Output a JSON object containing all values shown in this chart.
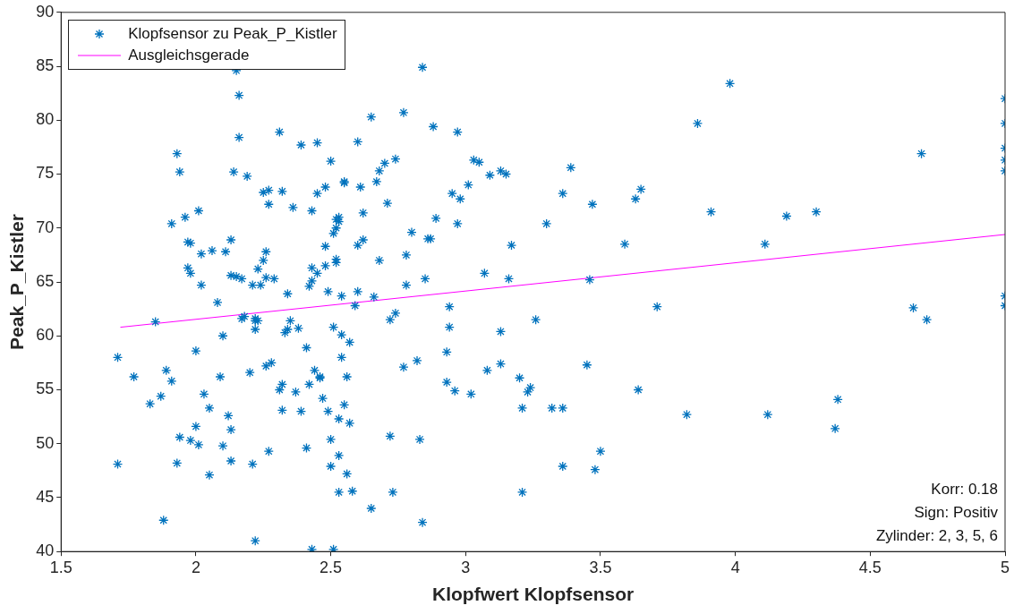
{
  "chart_data": {
    "type": "scatter",
    "xlabel": "Klopfwert Klopfsensor",
    "ylabel": "Peak_P_Kistler",
    "xlim": [
      1.5,
      5
    ],
    "xticks": [
      1.5,
      2,
      2.5,
      3,
      3.5,
      4,
      4.5,
      5
    ],
    "ylim": [
      40,
      90
    ],
    "yticks": [
      40,
      45,
      50,
      55,
      60,
      65,
      70,
      75,
      80,
      85,
      90
    ],
    "grid": false,
    "legend": "top left",
    "annotations": [
      "Korr: 0.18",
      "Sign: Positiv",
      "Zylinder: 2, 3, 5, 6"
    ],
    "series": [
      {
        "name": "Klopfsensor zu Peak_P_Kistler",
        "marker": "cross",
        "color": "#0072bd",
        "x": [
          1.71,
          1.71,
          1.77,
          1.83,
          1.85,
          1.87,
          1.88,
          1.89,
          1.91,
          1.91,
          1.93,
          1.93,
          1.94,
          1.94,
          1.96,
          1.97,
          1.97,
          1.98,
          1.98,
          1.98,
          2.0,
          2.0,
          2.01,
          2.01,
          2.02,
          2.02,
          2.03,
          2.05,
          2.05,
          2.06,
          2.08,
          2.09,
          2.1,
          2.1,
          2.11,
          2.12,
          2.13,
          2.13,
          2.13,
          2.13,
          2.14,
          2.15,
          2.15,
          2.16,
          2.16,
          2.17,
          2.17,
          2.18,
          2.19,
          2.2,
          2.21,
          2.21,
          2.22,
          2.22,
          2.22,
          2.22,
          2.23,
          2.23,
          2.24,
          2.25,
          2.25,
          2.26,
          2.26,
          2.26,
          2.27,
          2.27,
          2.27,
          2.28,
          2.29,
          2.31,
          2.31,
          2.32,
          2.32,
          2.32,
          2.33,
          2.34,
          2.34,
          2.35,
          2.36,
          2.37,
          2.38,
          2.39,
          2.39,
          2.41,
          2.41,
          2.42,
          2.42,
          2.43,
          2.43,
          2.43,
          2.43,
          2.44,
          2.45,
          2.45,
          2.45,
          2.46,
          2.46,
          2.47,
          2.48,
          2.48,
          2.48,
          2.49,
          2.49,
          2.5,
          2.5,
          2.5,
          2.51,
          2.51,
          2.51,
          2.52,
          2.52,
          2.52,
          2.52,
          2.53,
          2.53,
          2.53,
          2.53,
          2.53,
          2.54,
          2.54,
          2.54,
          2.55,
          2.55,
          2.55,
          2.56,
          2.56,
          2.57,
          2.57,
          2.58,
          2.59,
          2.6,
          2.6,
          2.6,
          2.61,
          2.62,
          2.62,
          2.65,
          2.65,
          2.66,
          2.67,
          2.68,
          2.68,
          2.7,
          2.71,
          2.72,
          2.72,
          2.73,
          2.74,
          2.74,
          2.77,
          2.77,
          2.78,
          2.78,
          2.8,
          2.82,
          2.83,
          2.84,
          2.84,
          2.85,
          2.86,
          2.87,
          2.88,
          2.89,
          2.93,
          2.93,
          2.94,
          2.94,
          2.95,
          2.96,
          2.97,
          2.97,
          2.98,
          3.01,
          3.02,
          3.03,
          3.05,
          3.07,
          3.08,
          3.09,
          3.13,
          3.13,
          3.13,
          3.15,
          3.16,
          3.17,
          3.2,
          3.21,
          3.21,
          3.23,
          3.24,
          3.26,
          3.3,
          3.32,
          3.36,
          3.36,
          3.36,
          3.39,
          3.45,
          3.46,
          3.47,
          3.48,
          3.5,
          3.59,
          3.63,
          3.64,
          3.65,
          3.71,
          3.82,
          3.86,
          3.91,
          3.98,
          4.11,
          4.12,
          4.19,
          4.3,
          4.37,
          4.38,
          4.66,
          4.69,
          4.71,
          5,
          5,
          5,
          5,
          5,
          5,
          5
        ],
        "values": [
          58.0,
          48.1,
          56.2,
          53.7,
          61.3,
          54.4,
          42.9,
          56.8,
          70.4,
          55.8,
          76.9,
          48.2,
          50.6,
          75.2,
          71.0,
          68.7,
          66.3,
          68.6,
          65.8,
          50.3,
          58.6,
          51.6,
          49.9,
          71.6,
          64.7,
          67.6,
          54.6,
          53.3,
          47.1,
          67.9,
          63.1,
          56.2,
          60.0,
          49.8,
          67.8,
          52.6,
          65.6,
          51.3,
          48.4,
          68.9,
          75.2,
          84.6,
          65.5,
          82.3,
          78.4,
          65.3,
          61.6,
          61.8,
          74.8,
          56.6,
          48.1,
          64.7,
          41.0,
          60.6,
          61.6,
          61.4,
          66.2,
          61.4,
          64.7,
          67.0,
          73.3,
          57.2,
          67.8,
          65.4,
          72.2,
          73.5,
          49.3,
          57.5,
          65.3,
          78.9,
          55.0,
          53.1,
          73.4,
          55.5,
          60.3,
          60.6,
          63.9,
          61.4,
          71.9,
          54.8,
          60.7,
          77.7,
          53.0,
          58.9,
          49.6,
          64.6,
          55.5,
          65.1,
          71.6,
          66.3,
          40.2,
          56.8,
          73.2,
          77.9,
          65.8,
          56.2,
          56.1,
          54.2,
          68.3,
          73.8,
          66.5,
          64.1,
          53.0,
          50.4,
          47.9,
          76.2,
          60.8,
          40.2,
          69.5,
          66.8,
          70.0,
          67.1,
          70.8,
          48.9,
          52.3,
          45.5,
          71.0,
          70.6,
          60.1,
          63.7,
          58.0,
          53.6,
          74.3,
          74.2,
          56.2,
          47.2,
          51.9,
          59.4,
          45.6,
          62.8,
          64.1,
          68.4,
          78.0,
          73.8,
          71.4,
          68.9,
          44.0,
          80.3,
          63.6,
          74.3,
          75.3,
          67.0,
          76.0,
          72.3,
          61.5,
          50.7,
          45.5,
          76.4,
          62.1,
          80.7,
          57.1,
          67.5,
          64.7,
          69.6,
          57.7,
          50.4,
          42.7,
          84.9,
          65.3,
          69.0,
          69.0,
          79.4,
          70.9,
          58.5,
          55.7,
          60.8,
          62.7,
          73.2,
          54.9,
          78.9,
          70.4,
          72.7,
          74.0,
          54.6,
          76.3,
          76.1,
          65.8,
          56.8,
          74.9,
          75.3,
          57.4,
          60.4,
          75.0,
          65.3,
          68.4,
          56.1,
          53.3,
          45.5,
          54.8,
          55.2,
          61.5,
          70.4,
          53.3,
          53.3,
          73.2,
          47.9,
          75.6,
          57.3,
          65.2,
          72.2,
          47.6,
          49.3,
          68.5,
          72.7,
          55.0,
          73.6,
          62.7,
          52.7,
          79.7,
          71.5,
          83.4,
          68.5,
          52.7,
          71.1,
          71.5,
          51.4,
          54.1,
          62.6,
          76.9,
          61.5,
          82.0,
          79.7,
          77.4,
          76.3,
          75.3,
          63.7,
          62.8
        ]
      },
      {
        "name": "Ausgleichsgerade",
        "type": "line",
        "marker": "none",
        "color": "#ff00ff",
        "x": [
          1.72,
          5
        ],
        "values": [
          60.8,
          69.4
        ]
      }
    ]
  }
}
